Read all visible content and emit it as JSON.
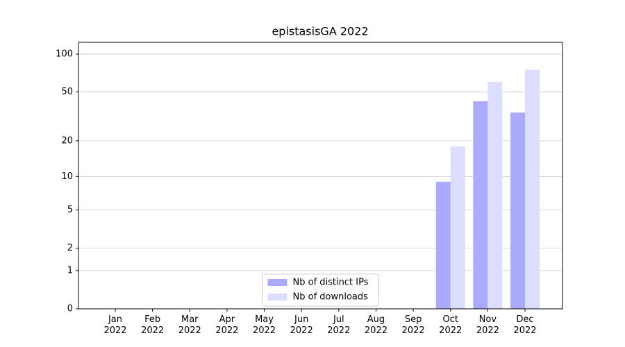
{
  "chart_data": {
    "type": "bar",
    "title": "epistasisGA 2022",
    "categories": [
      "Jan\n2022",
      "Feb\n2022",
      "Mar\n2022",
      "Apr\n2022",
      "May\n2022",
      "Jun\n2022",
      "Jul\n2022",
      "Aug\n2022",
      "Sep\n2022",
      "Oct\n2022",
      "Nov\n2022",
      "Dec\n2022"
    ],
    "series": [
      {
        "name": "Nb of distinct IPs",
        "color": "#aaaaff",
        "values": [
          0,
          0,
          0,
          0,
          0,
          0,
          0,
          0,
          0,
          9,
          42,
          34
        ]
      },
      {
        "name": "Nb of downloads",
        "color": "#ddddff",
        "values": [
          0,
          0,
          0,
          0,
          0,
          0,
          0,
          0,
          0,
          18,
          60,
          75
        ]
      }
    ],
    "yscale": "log1p",
    "ylim": [
      0,
      124
    ],
    "yticks": [
      0,
      1,
      2,
      5,
      10,
      20,
      50,
      100
    ],
    "grid": true,
    "legend": "lower center"
  }
}
